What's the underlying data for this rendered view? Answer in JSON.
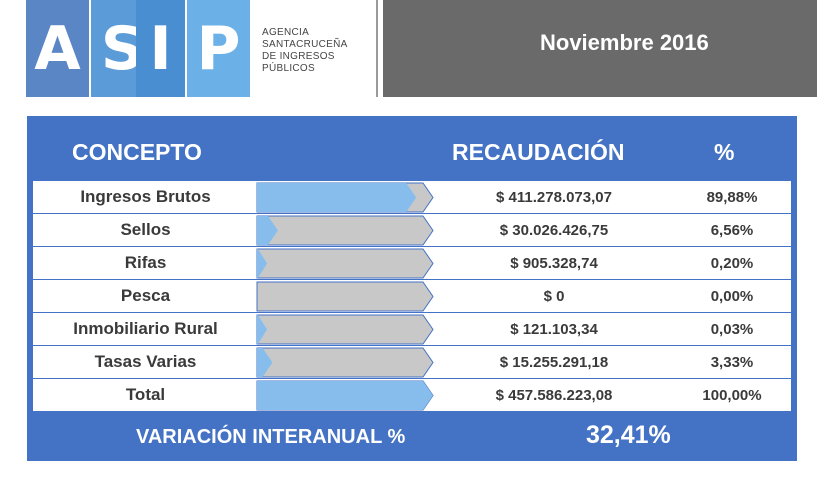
{
  "logo": {
    "letters": [
      "A",
      "S",
      "I",
      "P"
    ],
    "agency_lines": [
      "AGENCIA",
      "SANTACRUCEÑA",
      "DE INGRESOS",
      "PÚBLICOS"
    ]
  },
  "period": "Noviembre 2016",
  "colors": {
    "frame": "#4472c4",
    "bar_fill": "#87bdec",
    "bar_empty": "#c8c8c8",
    "header_dark": "#6a6a6a"
  },
  "chart_data": {
    "type": "table",
    "columns": [
      "CONCEPTO",
      "RECAUDACIÓN",
      "%"
    ],
    "rows": [
      {
        "concepto": "Ingresos Brutos",
        "recaudacion": "$ 411.278.073,07",
        "porcentaje": "89,88%",
        "share": 89.88
      },
      {
        "concepto": "Sellos",
        "recaudacion": "$ 30.026.426,75",
        "porcentaje": "6,56%",
        "share": 6.56
      },
      {
        "concepto": "Rifas",
        "recaudacion": "$ 905.328,74",
        "porcentaje": "0,20%",
        "share": 0.2
      },
      {
        "concepto": "Pesca",
        "recaudacion": "$ 0",
        "porcentaje": "0,00%",
        "share": 0.0
      },
      {
        "concepto": "Inmobiliario Rural",
        "recaudacion": "$ 121.103,34",
        "porcentaje": "0,03%",
        "share": 0.03
      },
      {
        "concepto": "Tasas Varias",
        "recaudacion": "$ 15.255.291,18",
        "porcentaje": "3,33%",
        "share": 3.33
      },
      {
        "concepto": "Total",
        "recaudacion": "$ 457.586.223,08",
        "porcentaje": "100,00%",
        "share": 100.0
      }
    ],
    "footer": {
      "label": "VARIACIÓN INTERANUAL %",
      "value": "32,41%"
    }
  }
}
